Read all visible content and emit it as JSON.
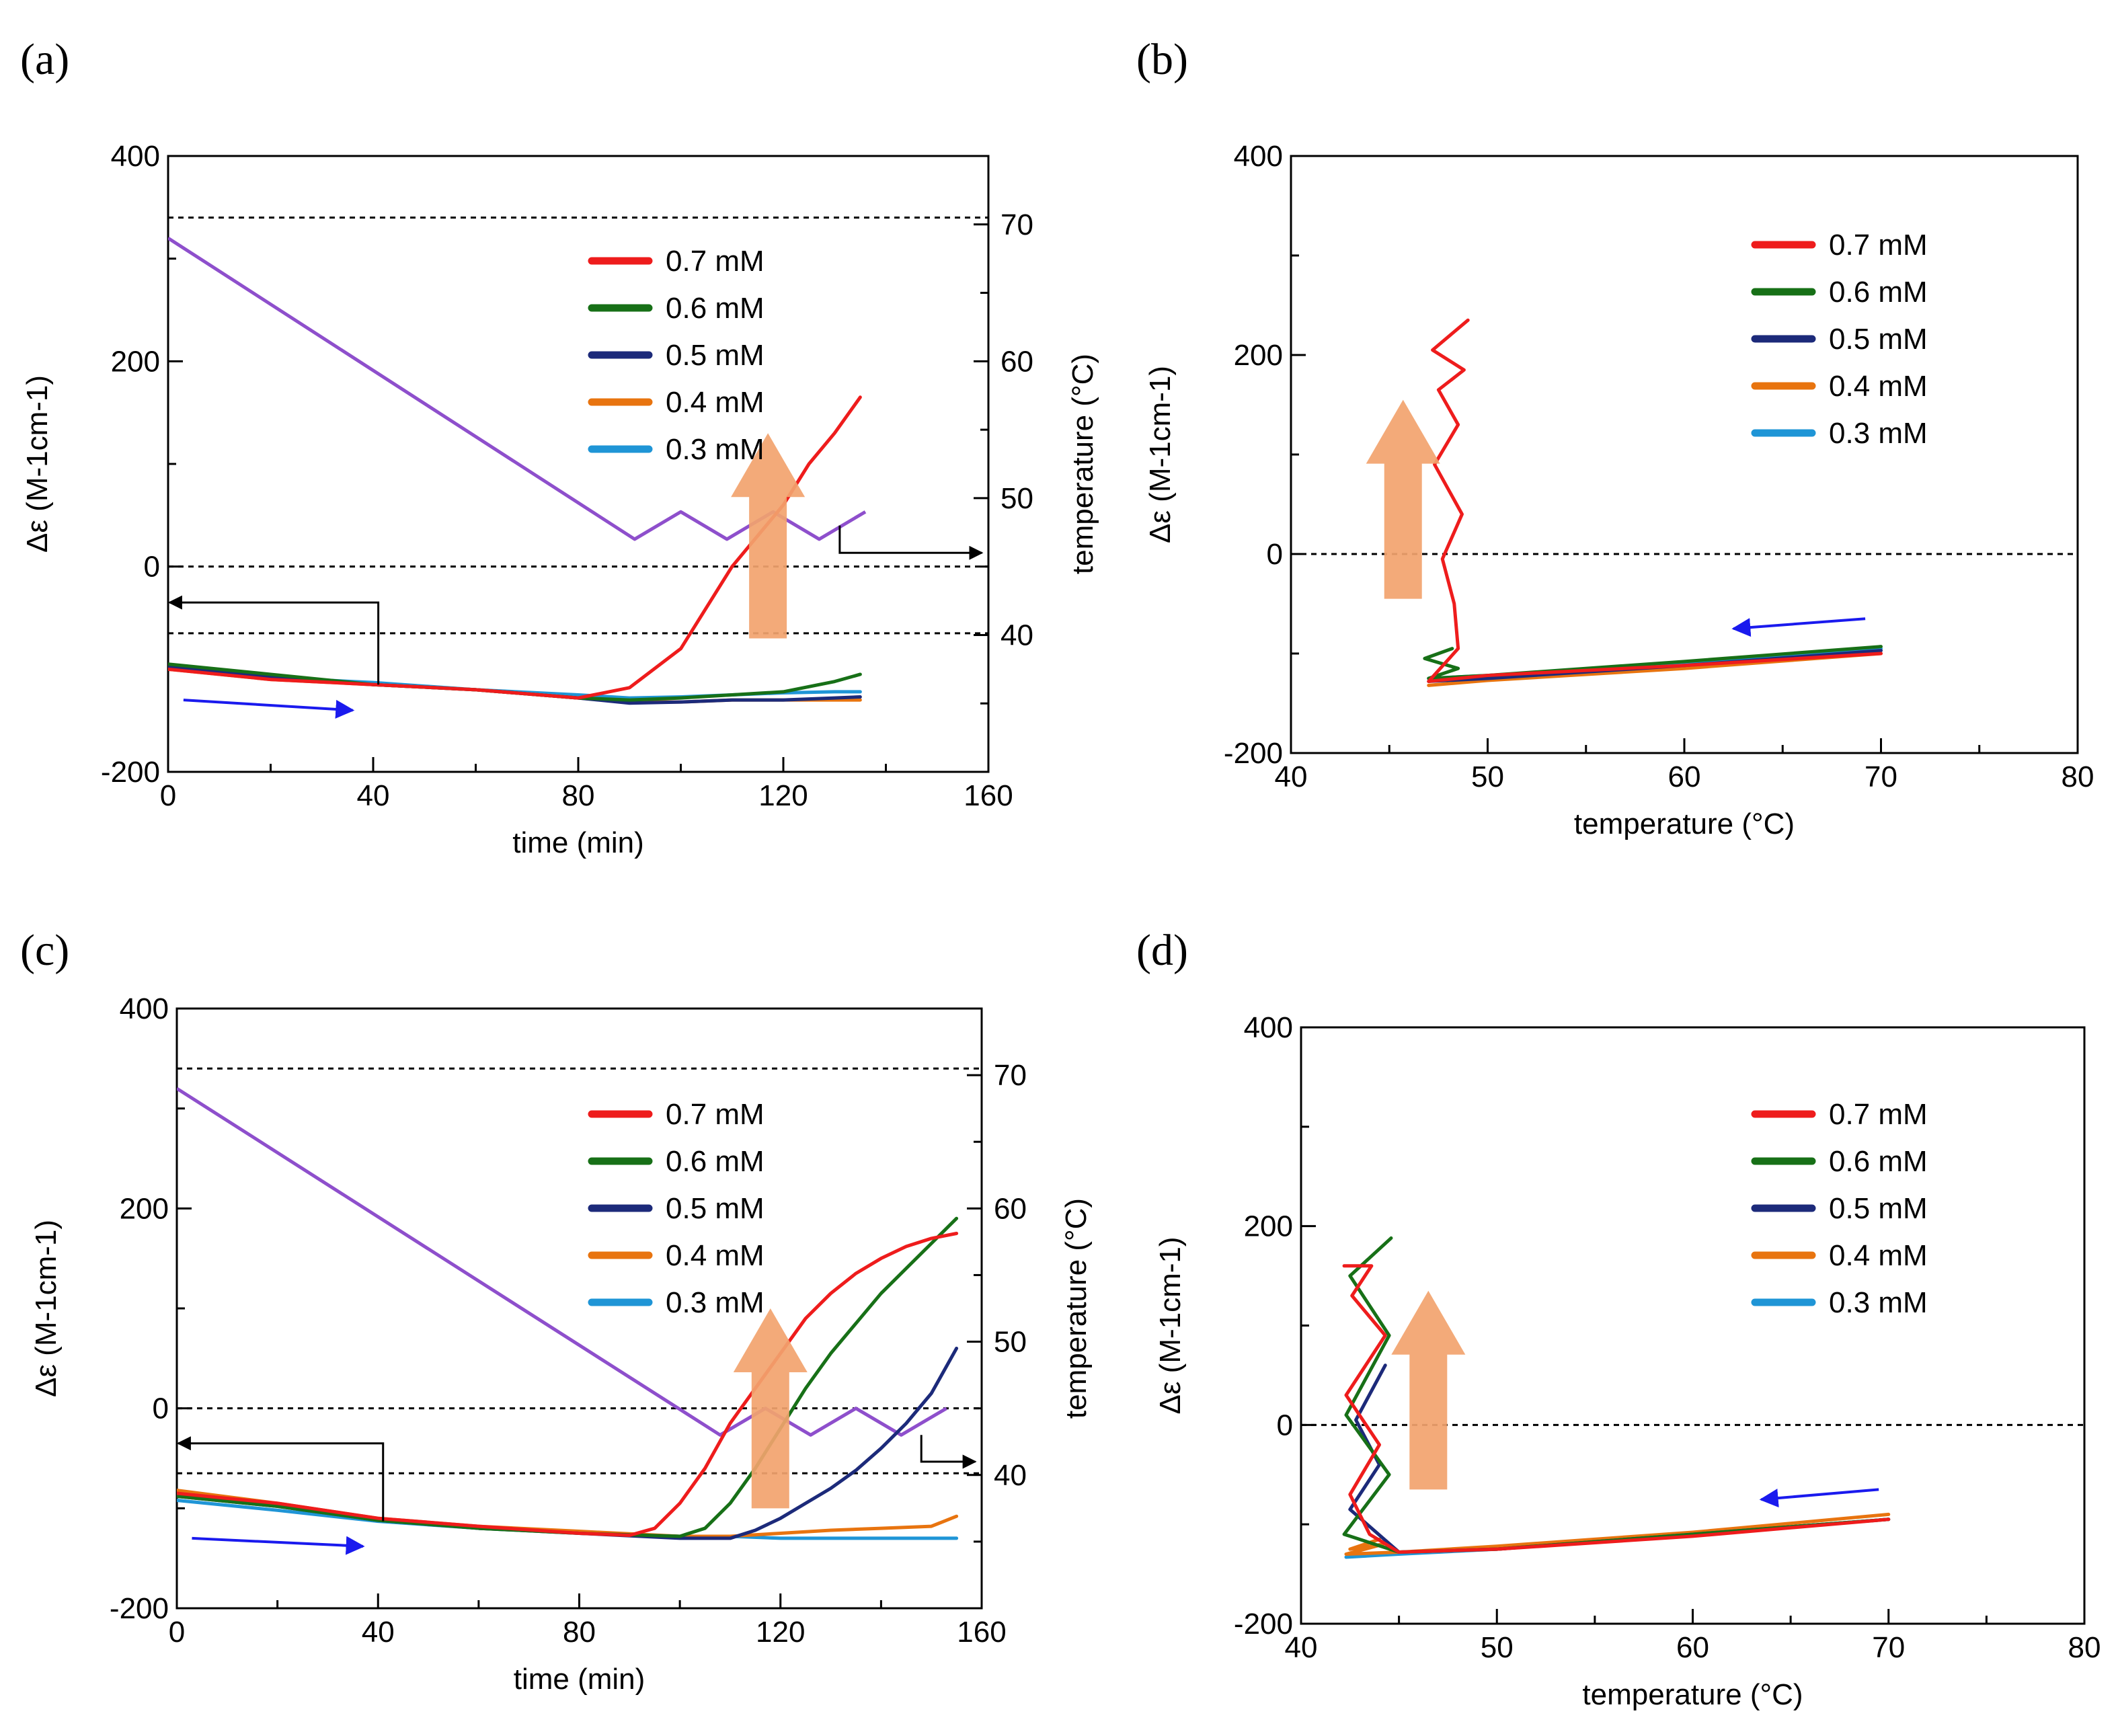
{
  "colors": {
    "c07": "#ee1c1c",
    "c06": "#177017",
    "c05": "#1c2a7a",
    "c04": "#e8740f",
    "c03": "#1f95d6",
    "temperature": "#8e4fcc",
    "orange_arrow": "#f2a36e",
    "blue_arrow": "#1a1aee"
  },
  "chart_data": [
    {
      "id": "a",
      "panel_label": "(a)",
      "type": "line",
      "xlabel": "time (min)",
      "ylabel": "Δε (M-1cm-1)",
      "y2label": "temperature (°C)",
      "xlim": [
        0,
        160
      ],
      "ylim": [
        -200,
        400
      ],
      "y2lim": [
        30,
        75
      ],
      "xticks": [
        "0",
        "40",
        "80",
        "120",
        "160"
      ],
      "yticks": [
        "-200",
        "0",
        "200",
        "400"
      ],
      "y2ticks": [
        "40",
        "50",
        "60",
        "70"
      ],
      "legend": [
        "0.7 mM",
        "0.6 mM",
        "0.5 mM",
        "0.4 mM",
        "0.3 mM"
      ],
      "series": [
        {
          "name": "0.7 mM",
          "x": [
            0,
            20,
            40,
            60,
            80,
            90,
            100,
            105,
            110,
            115,
            120,
            125,
            130,
            135
          ],
          "y": [
            -100,
            -110,
            -115,
            -120,
            -128,
            -118,
            -80,
            -40,
            0,
            30,
            60,
            100,
            130,
            165
          ]
        },
        {
          "name": "0.6 mM",
          "x": [
            0,
            20,
            40,
            60,
            80,
            90,
            100,
            110,
            120,
            130,
            135
          ],
          "y": [
            -95,
            -105,
            -115,
            -120,
            -128,
            -130,
            -128,
            -125,
            -122,
            -112,
            -105
          ]
        },
        {
          "name": "0.5 mM",
          "x": [
            0,
            20,
            40,
            60,
            80,
            90,
            100,
            110,
            120,
            130,
            135
          ],
          "y": [
            -98,
            -108,
            -115,
            -120,
            -128,
            -133,
            -132,
            -130,
            -130,
            -128,
            -127
          ]
        },
        {
          "name": "0.4 mM",
          "x": [
            0,
            20,
            40,
            60,
            80,
            90,
            100,
            110,
            120,
            130,
            135
          ],
          "y": [
            -100,
            -110,
            -115,
            -120,
            -128,
            -132,
            -132,
            -130,
            -130,
            -130,
            -130
          ]
        },
        {
          "name": "0.3 mM",
          "x": [
            0,
            20,
            40,
            60,
            80,
            90,
            100,
            110,
            120,
            130,
            135
          ],
          "y": [
            -98,
            -108,
            -113,
            -120,
            -125,
            -128,
            -127,
            -125,
            -123,
            -122,
            -122
          ]
        }
      ],
      "temperature": {
        "x": [
          0,
          91,
          100,
          109,
          118,
          127,
          136
        ],
        "y": [
          69,
          47,
          49,
          47,
          49,
          47,
          49
        ]
      },
      "hlines": [
        0,
        -65,
        340
      ],
      "arrow_orange": {
        "x": 117,
        "y_from": -70,
        "y_to": 130
      },
      "arrow_blue": {
        "x_from": 3,
        "y_from": -130,
        "x_to": 36,
        "y_to": -140
      },
      "bracket_left": {
        "x_from": 41,
        "x_to": 0,
        "y_from": -115,
        "y_to": -35
      },
      "bracket_right": {
        "x_from": 131,
        "x_to": 159,
        "y_from": 48,
        "y_to": 46
      }
    },
    {
      "id": "b",
      "panel_label": "(b)",
      "type": "line",
      "xlabel": "temperature (°C)",
      "ylabel": "Δε (M-1cm-1)",
      "xlim": [
        40,
        80
      ],
      "ylim": [
        -200,
        400
      ],
      "xticks": [
        "40",
        "50",
        "60",
        "70",
        "80"
      ],
      "yticks": [
        "-200",
        "0",
        "200",
        "400"
      ],
      "legend": [
        "0.7 mM",
        "0.6 mM",
        "0.5 mM",
        "0.4 mM",
        "0.3 mM"
      ],
      "series": [
        {
          "name": "0.7 mM",
          "x": [
            70,
            60,
            50,
            47,
            48.5,
            48.3,
            47.7,
            48.7,
            47.3,
            48.5,
            47.5,
            48.8,
            47.2,
            49
          ],
          "y": [
            -100,
            -112,
            -122,
            -128,
            -95,
            -50,
            -5,
            40,
            90,
            130,
            165,
            185,
            205,
            235
          ]
        },
        {
          "name": "0.6 mM",
          "x": [
            70,
            60,
            50,
            47,
            48.5,
            46.8,
            48.2
          ],
          "y": [
            -93,
            -108,
            -122,
            -125,
            -115,
            -105,
            -95
          ]
        },
        {
          "name": "0.5 mM",
          "x": [
            70,
            60,
            50,
            47
          ],
          "y": [
            -97,
            -112,
            -125,
            -128
          ]
        },
        {
          "name": "0.4 mM",
          "x": [
            70,
            60,
            50,
            47
          ],
          "y": [
            -100,
            -115,
            -127,
            -132
          ]
        },
        {
          "name": "0.3 mM",
          "x": [
            70,
            60,
            50,
            47
          ],
          "y": [
            -95,
            -110,
            -122,
            -125
          ]
        }
      ],
      "hlines": [
        0
      ],
      "arrow_orange": {
        "x": 45.7,
        "y_from": -45,
        "y_to": 155
      },
      "arrow_blue": {
        "x_from": 69.2,
        "y_from": -65,
        "x_to": 62.5,
        "y_to": -75
      }
    },
    {
      "id": "c",
      "panel_label": "(c)",
      "type": "line",
      "xlabel": "time (min)",
      "ylabel": "Δε (M-1cm-1)",
      "y2label": "temperature (°C)",
      "xlim": [
        0,
        160
      ],
      "ylim": [
        -200,
        400
      ],
      "y2lim": [
        30,
        75
      ],
      "xticks": [
        "0",
        "40",
        "80",
        "120",
        "160"
      ],
      "yticks": [
        "-200",
        "0",
        "200",
        "400"
      ],
      "y2ticks": [
        "40",
        "50",
        "60",
        "70"
      ],
      "legend": [
        "0.7 mM",
        "0.6 mM",
        "0.5 mM",
        "0.4 mM",
        "0.3 mM"
      ],
      "series": [
        {
          "name": "0.7 mM",
          "x": [
            0,
            20,
            40,
            60,
            80,
            90,
            95,
            100,
            105,
            110,
            115,
            120,
            125,
            130,
            135,
            140,
            145,
            150,
            155
          ],
          "y": [
            -85,
            -95,
            -110,
            -118,
            -125,
            -127,
            -120,
            -95,
            -60,
            -15,
            20,
            55,
            90,
            115,
            135,
            150,
            162,
            170,
            175
          ]
        },
        {
          "name": "0.6 mM",
          "x": [
            0,
            20,
            40,
            60,
            80,
            100,
            105,
            110,
            115,
            120,
            125,
            130,
            135,
            140,
            145,
            150,
            155
          ],
          "y": [
            -88,
            -98,
            -112,
            -120,
            -125,
            -128,
            -120,
            -95,
            -60,
            -20,
            20,
            55,
            85,
            115,
            140,
            165,
            190
          ]
        },
        {
          "name": "0.5 mM",
          "x": [
            0,
            20,
            40,
            60,
            80,
            100,
            110,
            115,
            120,
            125,
            130,
            135,
            140,
            145,
            150,
            155
          ],
          "y": [
            -88,
            -98,
            -112,
            -120,
            -125,
            -130,
            -130,
            -122,
            -110,
            -95,
            -80,
            -62,
            -40,
            -15,
            15,
            60
          ]
        },
        {
          "name": "0.4 mM",
          "x": [
            0,
            20,
            40,
            60,
            80,
            100,
            110,
            120,
            130,
            140,
            150,
            155
          ],
          "y": [
            -82,
            -95,
            -110,
            -118,
            -123,
            -128,
            -128,
            -125,
            -122,
            -120,
            -118,
            -108
          ]
        },
        {
          "name": "0.3 mM",
          "x": [
            0,
            20,
            40,
            60,
            80,
            100,
            110,
            120,
            130,
            140,
            150,
            155
          ],
          "y": [
            -92,
            -102,
            -113,
            -120,
            -124,
            -128,
            -128,
            -130,
            -130,
            -130,
            -130,
            -130
          ]
        }
      ],
      "temperature": {
        "x": [
          0,
          108,
          117,
          126,
          135,
          144,
          153
        ],
        "y": [
          69,
          43,
          45,
          43,
          45,
          43,
          45
        ]
      },
      "hlines": [
        0,
        -65,
        340
      ],
      "arrow_orange": {
        "x": 118,
        "y_from": -100,
        "y_to": 100
      },
      "arrow_blue": {
        "x_from": 3,
        "y_from": -130,
        "x_to": 37,
        "y_to": -138
      },
      "bracket_left": {
        "x_from": 41,
        "x_to": 0,
        "y_from": -113,
        "y_to": -35
      },
      "bracket_right": {
        "x_from": 148,
        "x_to": 159,
        "y_from": 43,
        "y_to": 41
      }
    },
    {
      "id": "d",
      "panel_label": "(d)",
      "type": "line",
      "xlabel": "temperature (°C)",
      "ylabel": "Δε (M-1cm-1)",
      "xlim": [
        40,
        80
      ],
      "ylim": [
        -200,
        400
      ],
      "xticks": [
        "40",
        "50",
        "60",
        "70",
        "80"
      ],
      "yticks": [
        "-200",
        "0",
        "200",
        "400"
      ],
      "legend": [
        "0.7 mM",
        "0.6 mM",
        "0.5 mM",
        "0.4 mM",
        "0.3 mM"
      ],
      "series": [
        {
          "name": "0.7 mM",
          "x": [
            70,
            60,
            50,
            45,
            43.5,
            42.5,
            44,
            42.3,
            44.3,
            42.6,
            43.6,
            42.2
          ],
          "y": [
            -95,
            -112,
            -125,
            -128,
            -110,
            -70,
            -20,
            30,
            90,
            130,
            160,
            160
          ]
        },
        {
          "name": "0.6 mM",
          "x": [
            70,
            60,
            50,
            45,
            42.2,
            44.5,
            42.3,
            44.5,
            42.5,
            44.6
          ],
          "y": [
            -95,
            -110,
            -125,
            -128,
            -110,
            -50,
            10,
            90,
            150,
            188
          ]
        },
        {
          "name": "0.5 mM",
          "x": [
            70,
            60,
            50,
            45,
            42.5,
            44,
            42.8,
            44.3
          ],
          "y": [
            -95,
            -110,
            -125,
            -128,
            -85,
            -40,
            5,
            60
          ]
        },
        {
          "name": "0.4 mM",
          "x": [
            70,
            60,
            50,
            45,
            42.3,
            44.2,
            42.5,
            44
          ],
          "y": [
            -90,
            -108,
            -122,
            -128,
            -130,
            -120,
            -125,
            -115
          ]
        },
        {
          "name": "0.3 mM",
          "x": [
            70,
            60,
            50,
            45,
            42.3
          ],
          "y": [
            -95,
            -110,
            -125,
            -130,
            -133
          ]
        }
      ],
      "hlines": [
        0
      ],
      "arrow_orange": {
        "x": 46.5,
        "y_from": -65,
        "y_to": 135
      },
      "arrow_blue": {
        "x_from": 69.5,
        "y_from": -65,
        "x_to": 63.5,
        "y_to": -75
      }
    }
  ]
}
